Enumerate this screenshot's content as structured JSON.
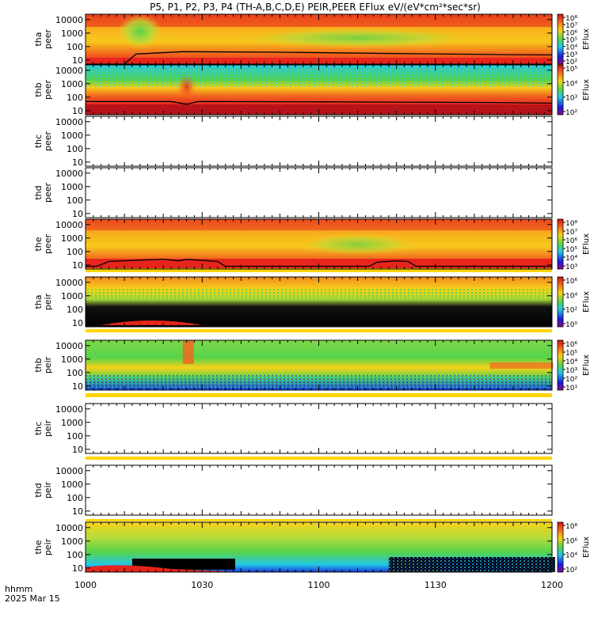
{
  "chart_data": {
    "type": "heatmap",
    "title": "P5, P1, P2, P3, P4 (TH-A,B,C,D,E) PEIR,PEER EFlux eV/(eV*cm²*sec*sr)",
    "x_unit_label": "hhmm",
    "date_label": "2025 Mar 15",
    "x_ticks": [
      "1000",
      "1030",
      "1100",
      "1130",
      "1200"
    ],
    "y_ticks": [
      "10",
      "100",
      "1000",
      "10000"
    ],
    "y_scale": "log",
    "ylim": [
      5,
      25000
    ],
    "x_range_minutes": [
      0,
      120
    ],
    "colorbar_label": "EFlux",
    "panels": [
      {
        "probe": "tha",
        "species": "peer",
        "data": "spectrogram",
        "colorbar_ticks": [
          "10²",
          "10³",
          "10⁴",
          "10⁵",
          "10⁶",
          "10⁷",
          "10⁸"
        ],
        "scpot_line": [
          [
            0,
            0
          ],
          [
            10,
            0
          ],
          [
            13,
            28
          ],
          [
            25,
            42
          ],
          [
            50,
            38
          ],
          [
            80,
            30
          ],
          [
            110,
            25
          ],
          [
            120,
            24
          ]
        ]
      },
      {
        "probe": "thb",
        "species": "peer",
        "data": "spectrogram",
        "colorbar_ticks": [
          "10²",
          "10³",
          "10⁴",
          "10⁵"
        ],
        "scpot_line": [
          [
            0,
            48
          ],
          [
            22,
            48
          ],
          [
            26,
            30
          ],
          [
            29,
            48
          ],
          [
            60,
            45
          ],
          [
            90,
            42
          ],
          [
            105,
            40
          ],
          [
            120,
            36
          ]
        ]
      },
      {
        "probe": "thc",
        "species": "peer",
        "data": "none"
      },
      {
        "probe": "thd",
        "species": "peer",
        "data": "none"
      },
      {
        "probe": "the",
        "species": "peer",
        "data": "spectrogram",
        "colorbar_ticks": [
          "10³",
          "10⁴",
          "10⁵",
          "10⁶",
          "10⁷",
          "10⁸"
        ],
        "scpot_line": [
          [
            0,
            8
          ],
          [
            3,
            8
          ],
          [
            6,
            18
          ],
          [
            20,
            27
          ],
          [
            24,
            20
          ],
          [
            26,
            26
          ],
          [
            34,
            18
          ],
          [
            36,
            8
          ],
          [
            73,
            8
          ],
          [
            75,
            16
          ],
          [
            80,
            20
          ],
          [
            83,
            18
          ],
          [
            85,
            8
          ],
          [
            120,
            8
          ]
        ]
      },
      {
        "probe": "tha",
        "species": "peir",
        "data": "spectrogram",
        "colorbar_ticks": [
          "10⁰",
          "10²",
          "10⁴",
          "10⁶"
        ]
      },
      {
        "probe": "thb",
        "species": "peir",
        "data": "spectrogram",
        "colorbar_ticks": [
          "10¹",
          "10²",
          "10³",
          "10⁴",
          "10⁵",
          "10⁶"
        ]
      },
      {
        "probe": "thc",
        "species": "peir",
        "data": "none"
      },
      {
        "probe": "thd",
        "species": "peir",
        "data": "none"
      },
      {
        "probe": "the",
        "species": "peir",
        "data": "spectrogram",
        "colorbar_ticks": [
          "10²",
          "10⁴",
          "10⁶",
          "10⁸"
        ]
      }
    ]
  },
  "colors": {
    "red": "#e8251c",
    "orange": "#f2671f",
    "yellow": "#f7d21a",
    "green": "#56d34a",
    "cyan": "#24c8e6",
    "blue": "#1a3cd8",
    "black": "#000000",
    "band_yellow": "#ffd400"
  }
}
